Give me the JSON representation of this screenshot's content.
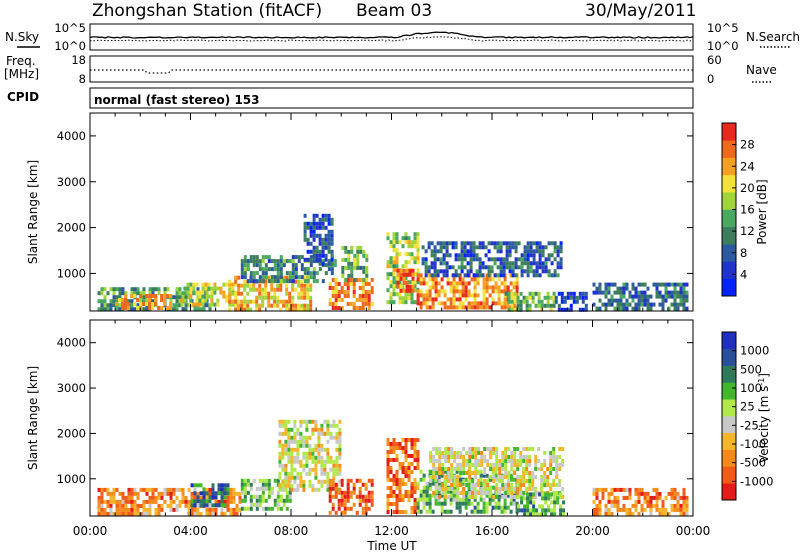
{
  "header": {
    "station": "Zhongshan Station (fitACF)",
    "beam": "Beam 03",
    "date": "30/May/2011"
  },
  "nsky_panel": {
    "left_label": "N.Sky",
    "right_label": "N.Search",
    "ticks": [
      "10^5",
      "10^0"
    ]
  },
  "freq_panel": {
    "left_label_1": "Freq.",
    "left_label_2": "[MHz]",
    "left_ticks": [
      "18",
      "8"
    ],
    "right_label": "Nave",
    "right_ticks": [
      "60",
      "0"
    ]
  },
  "cpid_panel": {
    "label": "CPID",
    "mode": "normal (fast stereo) 153"
  },
  "x_axis": {
    "label": "Time UT",
    "ticks": [
      "00:00",
      "04:00",
      "08:00",
      "12:00",
      "16:00",
      "20:00",
      "00:00"
    ]
  },
  "colors": {
    "power": [
      "#0022ff",
      "#2233cc",
      "#2c5aa0",
      "#3b7d5c",
      "#4aa860",
      "#9fd43a",
      "#f2e23a",
      "#f5a023",
      "#ee6a1c",
      "#e8291e"
    ],
    "velocity": [
      "#e51b1b",
      "#f25a1a",
      "#f58a1c",
      "#f5b52a",
      "#c8c8c8",
      "#b0e84a",
      "#44b62e",
      "#2e7a5a",
      "#2a4f9a",
      "#1f2fbf"
    ]
  },
  "chart_data": [
    {
      "type": "heatmap",
      "name": "power",
      "ylabel": "Slant Range [km]",
      "ylim": [
        180,
        4500
      ],
      "yticks": [
        1000,
        2000,
        3000,
        4000
      ],
      "xlim": [
        0,
        24
      ],
      "colorbar": {
        "label": "Power [dB]",
        "range": [
          0,
          32
        ],
        "ticks": [
          4,
          8,
          12,
          16,
          20,
          24,
          28
        ]
      },
      "patches": [
        {
          "t0": 0.3,
          "t1": 4.8,
          "r0": 200,
          "r1": 700,
          "level": 0.4
        },
        {
          "t0": 1.0,
          "t1": 3.2,
          "r0": 250,
          "r1": 550,
          "level": 0.75
        },
        {
          "t0": 3.6,
          "t1": 5.8,
          "r0": 280,
          "r1": 800,
          "level": 0.6
        },
        {
          "t0": 5.5,
          "t1": 8.8,
          "r0": 250,
          "r1": 950,
          "level": 0.7
        },
        {
          "t0": 6.0,
          "t1": 9.8,
          "r0": 800,
          "r1": 1400,
          "level": 0.35
        },
        {
          "t0": 8.5,
          "t1": 9.6,
          "r0": 1200,
          "r1": 2300,
          "level": 0.2
        },
        {
          "t0": 9.5,
          "t1": 11.2,
          "r0": 250,
          "r1": 900,
          "level": 0.8
        },
        {
          "t0": 10.0,
          "t1": 11.0,
          "r0": 900,
          "r1": 1600,
          "level": 0.45
        },
        {
          "t0": 11.8,
          "t1": 13.0,
          "r0": 350,
          "r1": 1900,
          "level": 0.55
        },
        {
          "t0": 12.2,
          "t1": 12.9,
          "r0": 600,
          "r1": 1100,
          "level": 0.85
        },
        {
          "t0": 13.0,
          "t1": 17.0,
          "r0": 250,
          "r1": 1000,
          "level": 0.8
        },
        {
          "t0": 13.2,
          "t1": 18.8,
          "r0": 1000,
          "r1": 1700,
          "level": 0.25
        },
        {
          "t0": 16.5,
          "t1": 18.5,
          "r0": 250,
          "r1": 600,
          "level": 0.5
        },
        {
          "t0": 18.5,
          "t1": 19.8,
          "r0": 250,
          "r1": 600,
          "level": 0.15
        },
        {
          "t0": 20.0,
          "t1": 23.8,
          "r0": 250,
          "r1": 800,
          "level": 0.3
        }
      ]
    },
    {
      "type": "heatmap",
      "name": "velocity",
      "ylabel": "Slant Range [km]",
      "ylim": [
        180,
        4500
      ],
      "yticks": [
        1000,
        2000,
        3000,
        4000
      ],
      "xlim": [
        0,
        24
      ],
      "colorbar": {
        "label": "Velocity [m s-1]",
        "ticks": [
          "1000",
          "500",
          "100",
          "25",
          "-25",
          "-100",
          "-500",
          "-1000"
        ]
      },
      "patches": [
        {
          "t0": 0.3,
          "t1": 6.0,
          "r0": 200,
          "r1": 800,
          "level": 0.25
        },
        {
          "t0": 4.0,
          "t1": 5.5,
          "r0": 400,
          "r1": 900,
          "level": 0.8
        },
        {
          "t0": 6.0,
          "t1": 8.0,
          "r0": 300,
          "r1": 1000,
          "level": 0.6
        },
        {
          "t0": 7.5,
          "t1": 10.0,
          "r0": 800,
          "r1": 2300,
          "level": 0.45
        },
        {
          "t0": 9.5,
          "t1": 11.2,
          "r0": 250,
          "r1": 1000,
          "level": 0.15
        },
        {
          "t0": 11.8,
          "t1": 13.0,
          "r0": 300,
          "r1": 1900,
          "level": 0.2
        },
        {
          "t0": 13.0,
          "t1": 17.0,
          "r0": 250,
          "r1": 1200,
          "level": 0.65
        },
        {
          "t0": 13.5,
          "t1": 18.8,
          "r0": 600,
          "r1": 1700,
          "level": 0.45
        },
        {
          "t0": 17.0,
          "t1": 18.8,
          "r0": 250,
          "r1": 700,
          "level": 0.7
        },
        {
          "t0": 20.0,
          "t1": 23.8,
          "r0": 250,
          "r1": 800,
          "level": 0.25
        }
      ]
    }
  ]
}
